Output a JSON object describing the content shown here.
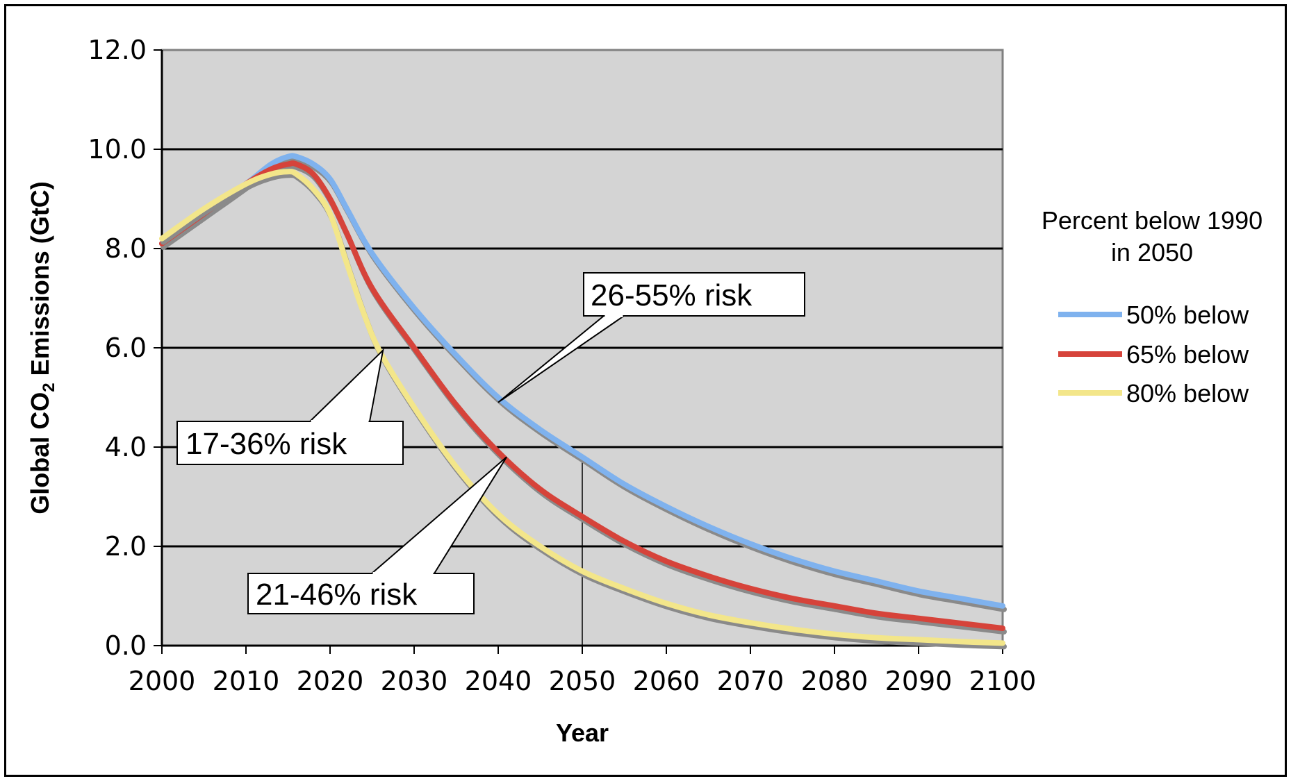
{
  "chart_data": {
    "type": "line",
    "title": "",
    "xlabel": "Year",
    "ylabel_prefix": "Global CO",
    "ylabel_sub": "2",
    "ylabel_suffix": " Emissions (GtC)",
    "xlim": [
      2000,
      2100
    ],
    "ylim": [
      0,
      12
    ],
    "x_ticks": [
      "2000",
      "2010",
      "2020",
      "2030",
      "2040",
      "2050",
      "2060",
      "2070",
      "2080",
      "2090",
      "2100"
    ],
    "y_ticks": [
      "0.0",
      "2.0",
      "4.0",
      "6.0",
      "8.0",
      "10.0",
      "12.0"
    ],
    "grid": "horizontal",
    "legend_title_line1": "Percent below 1990",
    "legend_title_line2": "in 2050",
    "legend_position": "right",
    "reference_line_x": 2050,
    "series": [
      {
        "name": "50% below",
        "color": "#7fb2ee",
        "x": [
          2000,
          2005,
          2010,
          2013,
          2015,
          2016,
          2018,
          2020,
          2022,
          2025,
          2030,
          2035,
          2040,
          2045,
          2050,
          2055,
          2060,
          2065,
          2070,
          2075,
          2080,
          2085,
          2090,
          2095,
          2100
        ],
        "y": [
          8.1,
          8.7,
          9.3,
          9.7,
          9.85,
          9.85,
          9.7,
          9.4,
          8.8,
          7.9,
          6.8,
          5.85,
          5.0,
          4.35,
          3.8,
          3.25,
          2.8,
          2.4,
          2.05,
          1.75,
          1.5,
          1.3,
          1.1,
          0.95,
          0.8
        ]
      },
      {
        "name": "65% below",
        "color": "#d6433a",
        "x": [
          2000,
          2005,
          2010,
          2013,
          2015,
          2016,
          2018,
          2020,
          2022,
          2025,
          2030,
          2035,
          2040,
          2045,
          2050,
          2055,
          2060,
          2065,
          2070,
          2075,
          2080,
          2085,
          2090,
          2095,
          2100
        ],
        "y": [
          8.1,
          8.7,
          9.3,
          9.6,
          9.7,
          9.7,
          9.5,
          9.0,
          8.3,
          7.2,
          6.0,
          4.85,
          3.9,
          3.15,
          2.6,
          2.1,
          1.7,
          1.4,
          1.15,
          0.95,
          0.8,
          0.65,
          0.55,
          0.45,
          0.35
        ]
      },
      {
        "name": "80% below",
        "color": "#f3e68a",
        "x": [
          2000,
          2005,
          2010,
          2013,
          2015,
          2016,
          2018,
          2020,
          2022,
          2024,
          2026,
          2030,
          2035,
          2040,
          2045,
          2050,
          2055,
          2060,
          2065,
          2070,
          2075,
          2080,
          2085,
          2090,
          2095,
          2100
        ],
        "y": [
          8.2,
          8.8,
          9.3,
          9.5,
          9.55,
          9.5,
          9.2,
          8.7,
          7.7,
          6.7,
          5.9,
          4.8,
          3.6,
          2.65,
          2.0,
          1.5,
          1.15,
          0.85,
          0.62,
          0.46,
          0.33,
          0.23,
          0.16,
          0.12,
          0.08,
          0.05
        ]
      }
    ],
    "annotations": [
      {
        "text": "26-55% risk",
        "x": 2040,
        "y": 4.9
      },
      {
        "text": "17-36% risk",
        "x": 2026.3,
        "y": 5.95
      },
      {
        "text": "21-46% risk",
        "x": 2041,
        "y": 3.8
      }
    ]
  }
}
